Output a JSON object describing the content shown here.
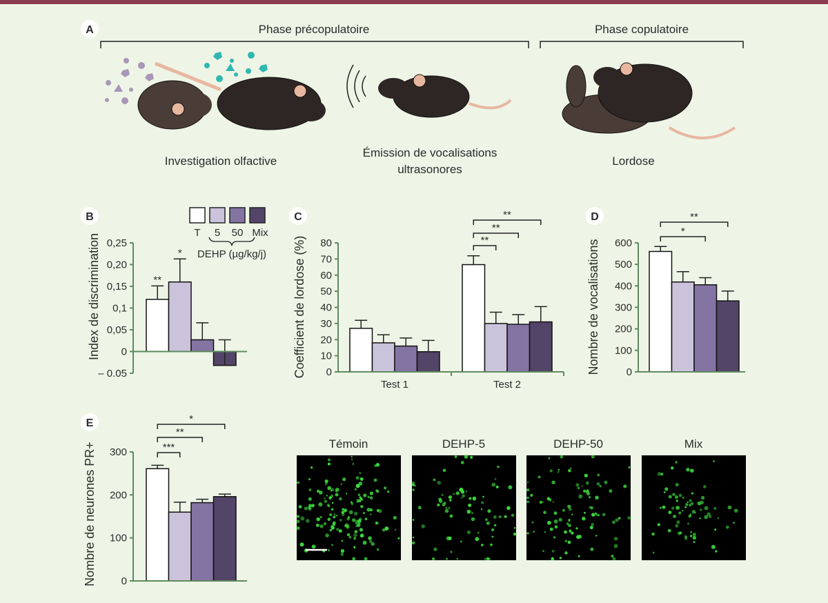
{
  "panel_a": {
    "label": "A",
    "phase_pre": "Phase précopulatoire",
    "phase_cop": "Phase copulatoire",
    "caption_olfactive": "Investigation olfactive",
    "caption_vocal_1": "Émission de vocalisations",
    "caption_vocal_2": "ultrasonores",
    "caption_lordose": "Lordose"
  },
  "legend": {
    "items": [
      {
        "label": "T",
        "color": "#ffffff"
      },
      {
        "label": "5",
        "color": "#cbc3dc"
      },
      {
        "label": "50",
        "color": "#8474a4"
      },
      {
        "label": "Mix",
        "color": "#534567"
      }
    ],
    "dehp_label": "DEHP (µg/kg/j)"
  },
  "micrographs": {
    "labels": [
      "Témoin",
      "DEHP-5",
      "DEHP-50",
      "Mix"
    ],
    "dot_color": "#3fdc3f"
  },
  "chart_data": [
    {
      "id": "B",
      "type": "bar",
      "label": "B",
      "ylabel": "Index de discrimination",
      "ylim": [
        -0.05,
        0.25
      ],
      "yticks": [
        {
          "v": 0.25,
          "t": "0,25"
        },
        {
          "v": 0.2,
          "t": "0,20"
        },
        {
          "v": 0.15,
          "t": "0,15"
        },
        {
          "v": 0.1,
          "t": "0,1"
        },
        {
          "v": 0.05,
          "t": "0,05"
        },
        {
          "v": 0,
          "t": "0"
        },
        {
          "v": -0.05,
          "t": "– 0.05"
        }
      ],
      "series_names": [
        "T",
        "DEHP 5",
        "DEHP 50",
        "Mix"
      ],
      "groups": [
        {
          "label": "",
          "values": [
            0.12,
            0.16,
            0.027,
            -0.032
          ],
          "err_top": [
            0.151,
            0.213,
            0.066,
            0.027
          ]
        }
      ],
      "stars": [
        {
          "group": 0,
          "bar": 0,
          "label": "**"
        },
        {
          "group": 0,
          "bar": 1,
          "label": "*"
        }
      ],
      "brackets": []
    },
    {
      "id": "C",
      "type": "bar",
      "label": "C",
      "ylabel": "Coefficient de lordose (%)",
      "ylim": [
        0,
        80
      ],
      "yticks": [
        {
          "v": 80,
          "t": "80"
        },
        {
          "v": 70,
          "t": "70"
        },
        {
          "v": 60,
          "t": "60"
        },
        {
          "v": 50,
          "t": "50"
        },
        {
          "v": 40,
          "t": "40"
        },
        {
          "v": 30,
          "t": "30"
        },
        {
          "v": 20,
          "t": "20"
        },
        {
          "v": 10,
          "t": "10"
        },
        {
          "v": 0,
          "t": "0"
        }
      ],
      "series_names": [
        "T",
        "DEHP 5",
        "DEHP 50",
        "Mix"
      ],
      "groups": [
        {
          "label": "Test 1",
          "values": [
            27,
            18,
            16,
            12.5
          ],
          "err_top": [
            32,
            23,
            21,
            19.5
          ]
        },
        {
          "label": "Test 2",
          "values": [
            66.5,
            30,
            29.5,
            31
          ],
          "err_top": [
            72,
            37,
            35.5,
            40.5
          ]
        }
      ],
      "stars": [],
      "brackets": [
        {
          "group": 1,
          "from": 0,
          "to": 1,
          "label": "**",
          "level": 0
        },
        {
          "group": 1,
          "from": 0,
          "to": 2,
          "label": "**",
          "level": 1
        },
        {
          "group": 1,
          "from": 0,
          "to": 3,
          "label": "**",
          "level": 2
        }
      ]
    },
    {
      "id": "D",
      "type": "bar",
      "label": "D",
      "ylabel": "Nombre de vocalisations",
      "ylim": [
        0,
        600
      ],
      "yticks": [
        {
          "v": 600,
          "t": "600"
        },
        {
          "v": 500,
          "t": "500"
        },
        {
          "v": 400,
          "t": "400"
        },
        {
          "v": 300,
          "t": "300"
        },
        {
          "v": 200,
          "t": "200"
        },
        {
          "v": 100,
          "t": "100"
        },
        {
          "v": 0,
          "t": "0"
        }
      ],
      "series_names": [
        "T",
        "DEHP 5",
        "DEHP 50",
        "Mix"
      ],
      "groups": [
        {
          "label": "",
          "values": [
            560,
            418,
            405,
            330
          ],
          "err_top": [
            583,
            466,
            438,
            376
          ]
        }
      ],
      "stars": [],
      "brackets": [
        {
          "group": 0,
          "from": 0,
          "to": 2,
          "label": "*",
          "level": 0
        },
        {
          "group": 0,
          "from": 0,
          "to": 3,
          "label": "**",
          "level": 1
        }
      ]
    },
    {
      "id": "E",
      "type": "bar",
      "label": "E",
      "ylabel": "Nombre de neurones PR+",
      "ylim": [
        0,
        300
      ],
      "yticks": [
        {
          "v": 300,
          "t": "300"
        },
        {
          "v": 200,
          "t": "200"
        },
        {
          "v": 100,
          "t": "100"
        },
        {
          "v": 0,
          "t": "0"
        }
      ],
      "series_names": [
        "T",
        "DEHP 5",
        "DEHP 50",
        "Mix"
      ],
      "groups": [
        {
          "label": "",
          "values": [
            261,
            160,
            182,
            196
          ],
          "err_top": [
            269,
            183,
            190,
            202
          ]
        }
      ],
      "stars": [],
      "brackets": [
        {
          "group": 0,
          "from": 0,
          "to": 1,
          "label": "***",
          "level": 0
        },
        {
          "group": 0,
          "from": 0,
          "to": 2,
          "label": "**",
          "level": 1
        },
        {
          "group": 0,
          "from": 0,
          "to": 3,
          "label": "*",
          "level": 2
        }
      ]
    }
  ]
}
